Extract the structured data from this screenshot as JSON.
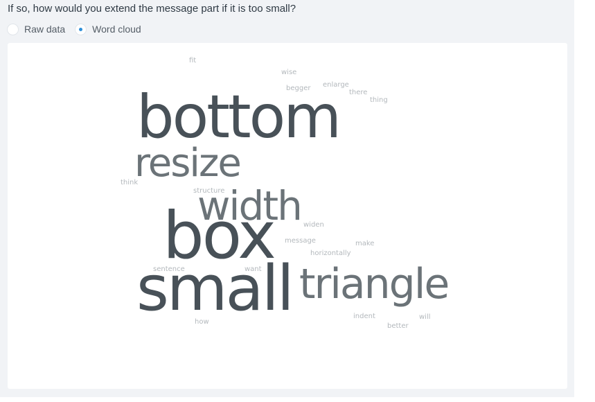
{
  "question": "If so, how would you extend the message part if it is too small?",
  "view_options": [
    {
      "label": "Raw data",
      "selected": false
    },
    {
      "label": "Word cloud",
      "selected": true
    }
  ],
  "colors": {
    "accent": "#2f8fd8",
    "word_dark": "#485158",
    "word_medium": "#6b7378",
    "word_light": "#b3b8bc"
  },
  "word_cloud": {
    "words": [
      {
        "text": "bottom"
      },
      {
        "text": "box"
      },
      {
        "text": "small"
      },
      {
        "text": "resize"
      },
      {
        "text": "width"
      },
      {
        "text": "triangle"
      },
      {
        "text": "fit"
      },
      {
        "text": "wise"
      },
      {
        "text": "begger"
      },
      {
        "text": "enlarge"
      },
      {
        "text": "there"
      },
      {
        "text": "thing"
      },
      {
        "text": "think"
      },
      {
        "text": "structure"
      },
      {
        "text": "widen"
      },
      {
        "text": "message"
      },
      {
        "text": "make"
      },
      {
        "text": "horizontally"
      },
      {
        "text": "sentence"
      },
      {
        "text": "want"
      },
      {
        "text": "how"
      },
      {
        "text": "indent"
      },
      {
        "text": "will"
      },
      {
        "text": "better"
      }
    ]
  }
}
